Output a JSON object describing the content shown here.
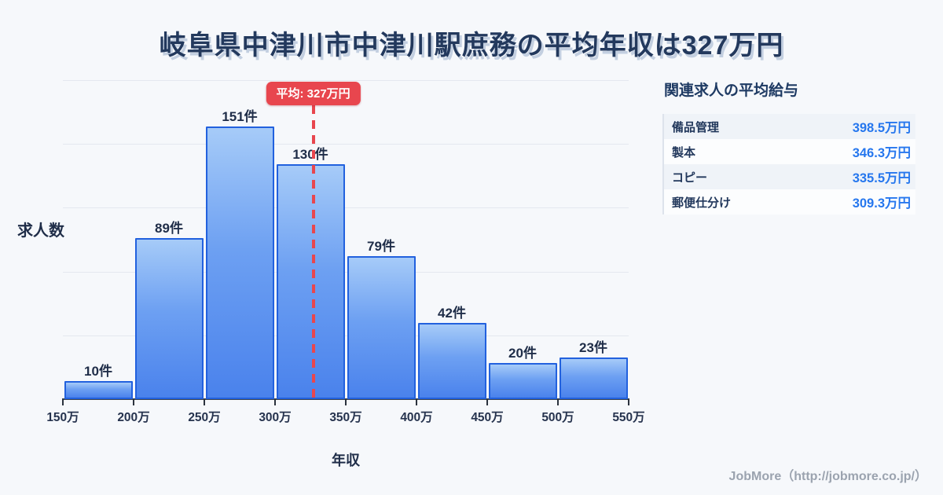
{
  "title": "岐阜県中津川市中津川駅庶務の平均年収は327万円",
  "chart_data": {
    "type": "bar",
    "title": "岐阜県中津川市中津川駅庶務の平均年収は327万円",
    "xlabel": "年収",
    "ylabel": "求人数",
    "bin_edge_labels": [
      "150万",
      "200万",
      "250万",
      "300万",
      "350万",
      "400万",
      "450万",
      "500万",
      "550万"
    ],
    "x_range": [
      150,
      550
    ],
    "values": [
      10,
      89,
      151,
      130,
      79,
      42,
      20,
      23
    ],
    "value_unit": "件",
    "bar_labels": [
      "10件",
      "89件",
      "151件",
      "130件",
      "79件",
      "42件",
      "20件",
      "23件"
    ],
    "average": {
      "value": 327,
      "label": "平均: 327万円"
    },
    "grid": true,
    "legend": "none",
    "colors": {
      "bar_top": "#a6cbf8",
      "bar_bottom": "#4a82ec",
      "bar_border": "#2261de",
      "average_red": "#e8464e",
      "value_blue": "#2677ee"
    }
  },
  "panel": {
    "title": "関連求人の平均給与",
    "rows": [
      {
        "label": "備品管理",
        "value": "398.5万円"
      },
      {
        "label": "製本",
        "value": "346.3万円"
      },
      {
        "label": "コピー",
        "value": "335.5万円"
      },
      {
        "label": "郵便仕分け",
        "value": "309.3万円"
      }
    ]
  },
  "footer": {
    "credit": "JobMore（http://jobmore.co.jp/）"
  }
}
